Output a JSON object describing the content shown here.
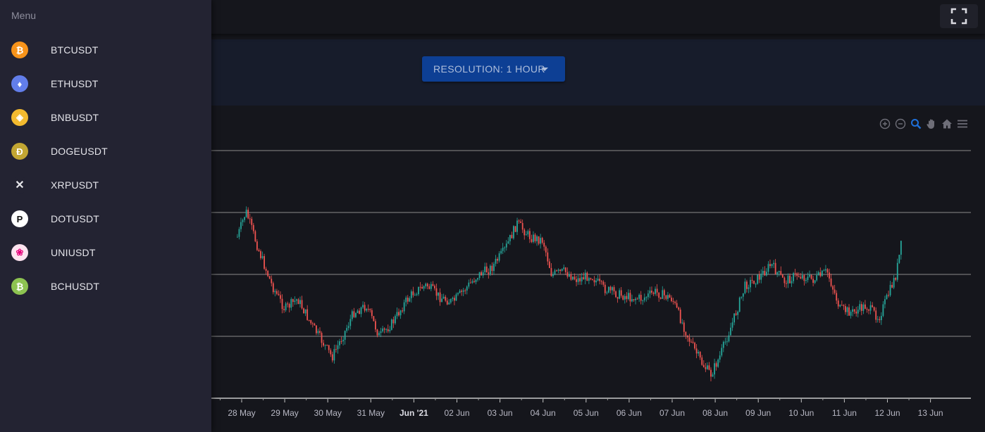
{
  "header": {
    "fullscreen_icon": "fullscreen-icon"
  },
  "controls": {
    "resolution_label": "Resolution: 1 hour"
  },
  "drawer": {
    "title": "Menu",
    "items": [
      {
        "label": "BTCUSDT",
        "icon": "bitcoin-icon",
        "glyph": "₿",
        "color": "#f7931a"
      },
      {
        "label": "ETHUSDT",
        "icon": "ethereum-icon",
        "glyph": "♦",
        "color": "#627eea"
      },
      {
        "label": "BNBUSDT",
        "icon": "binance-coin-icon",
        "glyph": "◈",
        "color": "#f3ba2f"
      },
      {
        "label": "DOGEUSDT",
        "icon": "dogecoin-icon",
        "glyph": "Ð",
        "color": "#c2a633"
      },
      {
        "label": "XRPUSDT",
        "icon": "xrp-icon",
        "glyph": "✕",
        "color": "#232332"
      },
      {
        "label": "DOTUSDT",
        "icon": "polkadot-icon",
        "glyph": "P",
        "color": "#ffffff"
      },
      {
        "label": "UNIUSDT",
        "icon": "uniswap-icon",
        "glyph": "❀",
        "color": "#fde3ef"
      },
      {
        "label": "BCHUSDT",
        "icon": "bitcoin-cash-icon",
        "glyph": "₿",
        "color": "#8dc351"
      }
    ]
  },
  "toolbar": {
    "icons": [
      "zoom-in-icon",
      "zoom-out-icon",
      "selection-zoom-icon",
      "pan-hand-icon",
      "home-reset-icon",
      "menu-icon"
    ]
  },
  "chart_data": {
    "type": "candlestick",
    "x_ticks": [
      "28 May",
      "29 May",
      "30 May",
      "31 May",
      "Jun '21",
      "02 Jun",
      "03 Jun",
      "04 Jun",
      "05 Jun",
      "06 Jun",
      "07 Jun",
      "08 Jun",
      "09 Jun",
      "10 Jun",
      "11 Jun",
      "12 Jun",
      "13 Jun"
    ],
    "bold_tick": "Jun '21",
    "colors": {
      "up": "#26a69a",
      "down": "#ef5350",
      "grid": "#8a8a8a"
    },
    "trend": [
      {
        "d": 27.9,
        "p": 0.8
      },
      {
        "d": 28.1,
        "p": 0.95
      },
      {
        "d": 28.4,
        "p": 0.72
      },
      {
        "d": 28.7,
        "p": 0.52
      },
      {
        "d": 29.0,
        "p": 0.38
      },
      {
        "d": 29.3,
        "p": 0.44
      },
      {
        "d": 29.6,
        "p": 0.3
      },
      {
        "d": 29.9,
        "p": 0.18
      },
      {
        "d": 30.1,
        "p": 0.1
      },
      {
        "d": 30.4,
        "p": 0.25
      },
      {
        "d": 30.6,
        "p": 0.36
      },
      {
        "d": 30.9,
        "p": 0.4
      },
      {
        "d": 31.2,
        "p": 0.22
      },
      {
        "d": 31.5,
        "p": 0.3
      },
      {
        "d": 31.8,
        "p": 0.42
      },
      {
        "d": 32.0,
        "p": 0.48
      },
      {
        "d": 32.3,
        "p": 0.52
      },
      {
        "d": 32.6,
        "p": 0.45
      },
      {
        "d": 32.9,
        "p": 0.42
      },
      {
        "d": 33.2,
        "p": 0.5
      },
      {
        "d": 33.5,
        "p": 0.58
      },
      {
        "d": 33.8,
        "p": 0.62
      },
      {
        "d": 34.1,
        "p": 0.72
      },
      {
        "d": 34.4,
        "p": 0.88
      },
      {
        "d": 34.7,
        "p": 0.8
      },
      {
        "d": 35.0,
        "p": 0.78
      },
      {
        "d": 35.2,
        "p": 0.58
      },
      {
        "d": 35.5,
        "p": 0.6
      },
      {
        "d": 35.8,
        "p": 0.55
      },
      {
        "d": 36.1,
        "p": 0.58
      },
      {
        "d": 36.4,
        "p": 0.5
      },
      {
        "d": 36.7,
        "p": 0.47
      },
      {
        "d": 37.0,
        "p": 0.45
      },
      {
        "d": 37.3,
        "p": 0.44
      },
      {
        "d": 37.6,
        "p": 0.48
      },
      {
        "d": 38.0,
        "p": 0.44
      },
      {
        "d": 38.4,
        "p": 0.2
      },
      {
        "d": 38.7,
        "p": 0.06
      },
      {
        "d": 38.9,
        "p": 0.0
      },
      {
        "d": 39.1,
        "p": 0.1
      },
      {
        "d": 39.4,
        "p": 0.3
      },
      {
        "d": 39.7,
        "p": 0.52
      },
      {
        "d": 40.0,
        "p": 0.56
      },
      {
        "d": 40.3,
        "p": 0.64
      },
      {
        "d": 40.6,
        "p": 0.54
      },
      {
        "d": 40.9,
        "p": 0.58
      },
      {
        "d": 41.3,
        "p": 0.55
      },
      {
        "d": 41.6,
        "p": 0.6
      },
      {
        "d": 41.9,
        "p": 0.38
      },
      {
        "d": 42.2,
        "p": 0.36
      },
      {
        "d": 42.5,
        "p": 0.4
      },
      {
        "d": 42.8,
        "p": 0.33
      },
      {
        "d": 43.0,
        "p": 0.45
      },
      {
        "d": 43.2,
        "p": 0.58
      },
      {
        "d": 43.35,
        "p": 0.8
      }
    ]
  }
}
